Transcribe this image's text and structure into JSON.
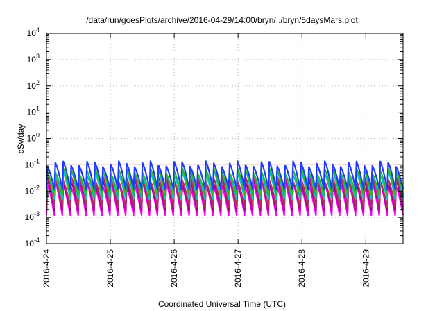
{
  "chart_data": {
    "type": "line",
    "title": "/data/run/goesPlots/archive/2016-04-29/14:00/bryn/../bryn/5daysMars.plot",
    "xlabel": "Coordinated Universal Time (UTC)",
    "ylabel": "cSv/day",
    "y_scale": "log",
    "ylim": [
      0.0001,
      10000
    ],
    "y_ticks": [
      {
        "value": 0.0001,
        "base": "10",
        "exp": "-4"
      },
      {
        "value": 0.001,
        "base": "10",
        "exp": "-3"
      },
      {
        "value": 0.01,
        "base": "10",
        "exp": "-2"
      },
      {
        "value": 0.1,
        "base": "10",
        "exp": "-1"
      },
      {
        "value": 1,
        "base": "10",
        "exp": "0"
      },
      {
        "value": 10,
        "base": "10",
        "exp": "1"
      },
      {
        "value": 100,
        "base": "10",
        "exp": "2"
      },
      {
        "value": 1000,
        "base": "10",
        "exp": "3"
      },
      {
        "value": 10000,
        "base": "10",
        "exp": "4"
      }
    ],
    "x_range": [
      "2016-04-24T00:00",
      "2016-04-29T14:00"
    ],
    "x_ticks": [
      "2016-4-24",
      "2016-4-25",
      "2016-4-26",
      "2016-4-27",
      "2016-4-28",
      "2016-4-29"
    ],
    "grid": true,
    "legend": "none",
    "threshold_line": {
      "value": 0.1,
      "color": "#e8002a"
    },
    "series": [
      {
        "color": "#ff00ff",
        "peak": 0.018,
        "trough": 0.0012
      },
      {
        "color": "#a40080",
        "peak": 0.024,
        "trough": 0.0018
      },
      {
        "color": "#b03060",
        "peak": 0.03,
        "trough": 0.0025
      },
      {
        "color": "#00c8c8",
        "peak": 0.05,
        "trough": 0.005
      },
      {
        "color": "#2db82d",
        "peak": 0.06,
        "trough": 0.007
      },
      {
        "color": "#1e3cff",
        "peak": 0.11,
        "trough": 0.012
      }
    ],
    "sawtooth": {
      "cycles_per_day": 8,
      "profile": "sharp rise, gradual decay"
    }
  }
}
